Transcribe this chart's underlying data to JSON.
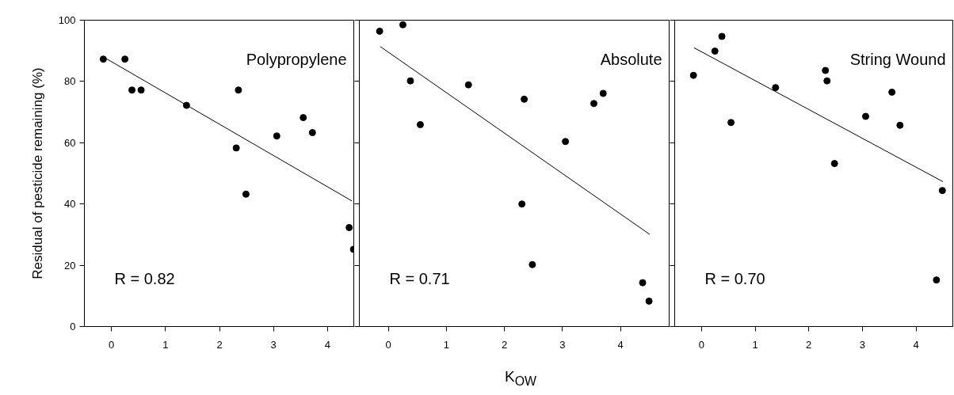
{
  "chart_data": [
    {
      "type": "scatter",
      "ylabel": "Residual of pesticide remaining (%)",
      "annotations": [
        "Polypropylene",
        "R = 0.82"
      ],
      "xlim": [
        -0.5,
        4.5
      ],
      "ylim": [
        0,
        100
      ],
      "xticks": [
        0,
        1,
        2,
        3,
        4
      ],
      "yticks": [
        0,
        20,
        40,
        60,
        80,
        100
      ],
      "grid": false,
      "series": [
        {
          "marker": "circle",
          "color": "#000000",
          "x": [
            -0.15,
            0.25,
            0.38,
            0.55,
            1.39,
            2.35,
            2.31,
            2.49,
            3.06,
            3.55,
            3.72,
            4.4,
            4.48
          ],
          "values": [
            87.3,
            87.3,
            77.2,
            77.2,
            72.2,
            77.2,
            58.3,
            43.2,
            62.2,
            68.2,
            63.3,
            32.3,
            25.2
          ]
        },
        {
          "type": "line",
          "color": "#000000",
          "line_style": "solid",
          "x": [
            -0.1,
            4.45
          ],
          "values": [
            87.5,
            41.0
          ]
        }
      ]
    },
    {
      "type": "scatter",
      "xlabel": "K$_{OW}$",
      "annotations": [
        "Absolute",
        "R = 0.71"
      ],
      "xlim": [
        -0.5,
        4.85
      ],
      "ylim": [
        0,
        100
      ],
      "xticks": [
        0,
        1,
        2,
        3,
        4
      ],
      "yticks": [
        0,
        20,
        40,
        60,
        80,
        100
      ],
      "tick_labels": "x",
      "grid": false,
      "series": [
        {
          "marker": "circle",
          "color": "#000000",
          "x": [
            -0.15,
            0.25,
            0.38,
            0.55,
            1.38,
            2.34,
            2.3,
            2.48,
            3.05,
            3.54,
            3.7,
            4.38,
            4.49
          ],
          "values": [
            96.4,
            98.5,
            80.2,
            65.9,
            78.9,
            74.2,
            40.0,
            20.2,
            60.4,
            72.8,
            76.1,
            14.3,
            8.3
          ]
        },
        {
          "type": "line",
          "color": "#000000",
          "line_style": "solid",
          "x": [
            -0.14,
            4.5
          ],
          "values": [
            91.4,
            30.1
          ]
        }
      ]
    },
    {
      "type": "scatter",
      "annotations": [
        "String Wound",
        "R = 0.70"
      ],
      "xlim": [
        -0.5,
        4.7
      ],
      "ylim": [
        0,
        100
      ],
      "xticks": [
        0,
        1,
        2,
        3,
        4
      ],
      "yticks": [
        0,
        20,
        40,
        60,
        80,
        100
      ],
      "tick_labels": "x",
      "grid": false,
      "series": [
        {
          "marker": "circle",
          "color": "#000000",
          "x": [
            -0.15,
            0.25,
            0.38,
            0.55,
            1.38,
            2.31,
            2.34,
            2.48,
            3.06,
            3.55,
            3.7,
            4.38,
            4.49
          ],
          "values": [
            82.0,
            89.9,
            94.7,
            66.6,
            78.0,
            83.6,
            80.2,
            53.2,
            68.6,
            76.5,
            65.7,
            15.2,
            44.4
          ]
        },
        {
          "type": "line",
          "color": "#000000",
          "line_style": "solid",
          "x": [
            -0.14,
            4.5
          ],
          "values": [
            91.0,
            47.3
          ]
        }
      ]
    }
  ]
}
